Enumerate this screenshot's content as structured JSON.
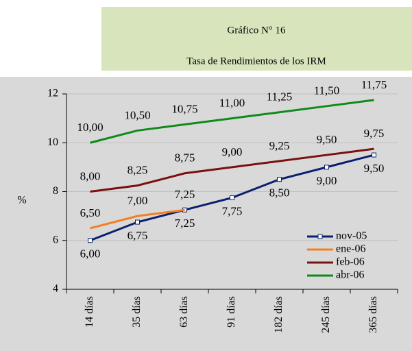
{
  "chart_data": {
    "type": "line",
    "title": "Gráfico N° 16",
    "subtitle": "Tasa de Rendimientos de los IRM",
    "y_label": "%",
    "categories": [
      "14 días",
      "35 días",
      "63 días",
      "91 días",
      "182 días",
      "245 días",
      "365 días"
    ],
    "series": [
      {
        "name": "nov-05",
        "color": "#0a1f6e",
        "marker": "square",
        "values": [
          6.0,
          6.75,
          7.25,
          7.75,
          8.5,
          9.0,
          9.5
        ],
        "value_labels": [
          "6,00",
          "6,75",
          "7,25",
          "7,75",
          "8,50",
          "9,00",
          "9,50"
        ]
      },
      {
        "name": "ene-06",
        "color": "#f47f20",
        "values": [
          6.5,
          7.0,
          7.25,
          null,
          null,
          null,
          null
        ],
        "value_labels": [
          "6,50",
          "7,00",
          "7,25",
          null,
          null,
          null,
          null
        ]
      },
      {
        "name": "feb-06",
        "color": "#7a1010",
        "values": [
          8.0,
          8.25,
          8.75,
          9.0,
          9.25,
          9.5,
          9.75
        ],
        "value_labels": [
          "8,00",
          "8,25",
          "8,75",
          "9,00",
          "9,25",
          "9,50",
          "9,75"
        ]
      },
      {
        "name": "abr-06",
        "color": "#0f8a1a",
        "values": [
          10.0,
          10.5,
          10.75,
          11.0,
          11.25,
          11.5,
          11.75
        ],
        "value_labels": [
          "10,00",
          "10,50",
          "10,75",
          "11,00",
          "11,25",
          "11,50",
          "11,75"
        ]
      }
    ],
    "ylim": [
      4,
      12
    ],
    "yticks": [
      4,
      6,
      8,
      10,
      12
    ],
    "grid": true,
    "legend": "lower right"
  }
}
